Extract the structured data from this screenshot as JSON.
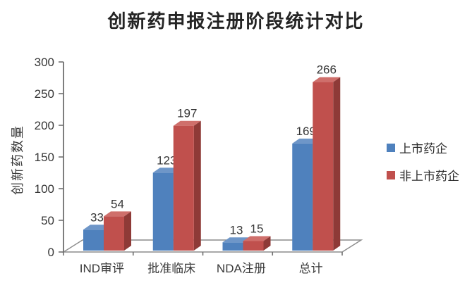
{
  "chart_data": {
    "type": "bar",
    "style": "3d-column",
    "title": "创新药申报注册阶段统计对比",
    "ylabel": "创新药数量",
    "xlabel": "",
    "categories": [
      "IND审评",
      "批准临床",
      "NDA注册",
      "总计"
    ],
    "series": [
      {
        "name": "上市药企",
        "values": [
          33,
          123,
          13,
          169
        ],
        "color": "#4F81BD",
        "top_color": "#6E96C8",
        "side_color": "#335B8C"
      },
      {
        "name": "非上市药企",
        "values": [
          54,
          197,
          15,
          266
        ],
        "color": "#C0504D",
        "top_color": "#CF6F6B",
        "side_color": "#8E3A37"
      }
    ],
    "ylim": [
      0,
      300
    ],
    "yticks": [
      0,
      50,
      100,
      150,
      200,
      250,
      300
    ],
    "grid": false,
    "legend_position": "right",
    "axis_color": "#8C8C8C",
    "text_color": "#363636"
  }
}
